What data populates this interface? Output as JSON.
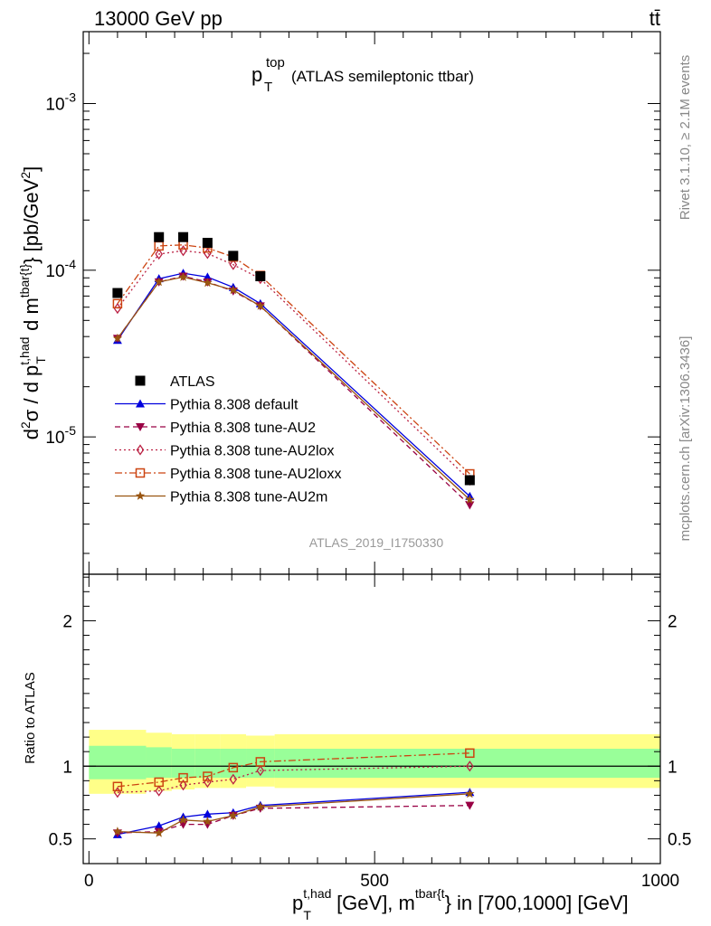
{
  "header": {
    "energy_label": "13000 GeV pp",
    "process_label": "tt̄"
  },
  "title": {
    "main": "p",
    "sup": "top",
    "sub": "T",
    "rest": "(ATLAS semileptonic ttbar)"
  },
  "analysis_id": "ATLAS_2019_I1750330",
  "side_labels": {
    "rivet": "Rivet 3.1.10, ≥ 2.1M events",
    "mcplots": "mcplots.cern.ch [arXiv:1306.3436]"
  },
  "main_ylabel": "d²σ / d p_T^{t,had} d m^{tbar{t}} [pb/GeV²]",
  "ratio_ylabel": "Ratio to ATLAS",
  "xlabel": "p_T^{t,had} [GeV], m^{tbar{t}} in [700,1000] [GeV]",
  "legend": [
    {
      "label": "ATLAS"
    },
    {
      "label": "Pythia 8.308 default"
    },
    {
      "label": "Pythia 8.308 tune-AU2"
    },
    {
      "label": "Pythia 8.308 tune-AU2lox"
    },
    {
      "label": "Pythia 8.308 tune-AU2loxx"
    },
    {
      "label": "Pythia 8.308 tune-AU2m"
    }
  ],
  "chart_data": [
    {
      "type": "scatter",
      "panel": "main",
      "y_scale": "log",
      "x_range": [
        -10,
        1000
      ],
      "y_range": [
        1.5e-06,
        0.0027
      ],
      "x_ticks": [
        0,
        500,
        1000
      ],
      "y_tick_labels": [
        "10^{-5}",
        "10^{-4}",
        "10^{-3}"
      ],
      "series": [
        {
          "name": "ATLAS",
          "color": "#000000",
          "marker": "square-filled",
          "line": "none",
          "x": [
            50,
            122.5,
            165,
            207.5,
            252.5,
            300,
            666.5
          ],
          "y": [
            7.3e-05,
            0.000158,
            0.000158,
            0.000146,
            0.000122,
            9.2e-05,
            5.5e-06
          ]
        },
        {
          "name": "Pythia 8.308 default",
          "color": "#0000dd",
          "marker": "triangle-up",
          "line": "solid",
          "x": [
            50,
            122.5,
            165,
            207.5,
            252.5,
            300,
            666.5
          ],
          "y": [
            3.8e-05,
            8.9e-05,
            9.6e-05,
            9.1e-05,
            7.9e-05,
            6.3e-05,
            4.4e-06
          ]
        },
        {
          "name": "Pythia 8.308 tune-AU2",
          "color": "#990044",
          "marker": "triangle-down",
          "line": "dashed",
          "x": [
            50,
            122.5,
            165,
            207.5,
            252.5,
            300,
            666.5
          ],
          "y": [
            3.9e-05,
            8.5e-05,
            9.2e-05,
            8.5e-05,
            7.5e-05,
            6.1e-05,
            3.9e-06
          ]
        },
        {
          "name": "Pythia 8.308 tune-AU2lox",
          "color": "#bb2244",
          "marker": "diamond-open",
          "line": "dotted",
          "x": [
            50,
            122.5,
            165,
            207.5,
            252.5,
            300,
            666.5
          ],
          "y": [
            5.9e-05,
            0.000125,
            0.000131,
            0.000126,
            0.000108,
            8.9e-05,
            5.5e-06
          ]
        },
        {
          "name": "Pythia 8.308 tune-AU2loxx",
          "color": "#cc4411",
          "marker": "square-open",
          "line": "dashdot",
          "x": [
            50,
            122.5,
            165,
            207.5,
            252.5,
            300,
            666.5
          ],
          "y": [
            6.3e-05,
            0.00014,
            0.000142,
            0.000136,
            0.00012,
            9.3e-05,
            6e-06
          ]
        },
        {
          "name": "Pythia 8.308 tune-AU2m",
          "color": "#995511",
          "marker": "star",
          "line": "solid",
          "x": [
            50,
            122.5,
            165,
            207.5,
            252.5,
            300,
            666.5
          ],
          "y": [
            3.9e-05,
            8.5e-05,
            9.1e-05,
            8.4e-05,
            7.6e-05,
            6.1e-05,
            4.2e-06
          ]
        }
      ]
    },
    {
      "type": "scatter",
      "panel": "ratio",
      "x_range": [
        -10,
        1000
      ],
      "y_range": [
        0.33,
        2.32
      ],
      "y_ticks": [
        0.5,
        1,
        2
      ],
      "reference_line": 1,
      "bands": {
        "x_edges": [
          0,
          100,
          145,
          185,
          230,
          275,
          325,
          1000
        ],
        "inner_lo": [
          0.91,
          0.92,
          0.92,
          0.92,
          0.92,
          0.92,
          0.92
        ],
        "inner_hi": [
          1.14,
          1.13,
          1.12,
          1.12,
          1.12,
          1.12,
          1.12
        ],
        "outer_lo": [
          0.81,
          0.83,
          0.84,
          0.85,
          0.85,
          0.86,
          0.85
        ],
        "outer_hi": [
          1.25,
          1.23,
          1.22,
          1.22,
          1.22,
          1.21,
          1.22
        ],
        "inner_color": "#99ff99",
        "outer_color": "#ffff88"
      },
      "series": [
        {
          "name": "Pythia 8.308 default",
          "color": "#0000dd",
          "marker": "triangle-up",
          "line": "solid",
          "x": [
            50,
            122.5,
            165,
            207.5,
            252.5,
            300,
            666.5
          ],
          "y": [
            0.53,
            0.59,
            0.65,
            0.67,
            0.68,
            0.73,
            0.82
          ]
        },
        {
          "name": "Pythia 8.308 tune-AU2",
          "color": "#990044",
          "marker": "triangle-down",
          "line": "dashed",
          "x": [
            50,
            122.5,
            165,
            207.5,
            252.5,
            300,
            666.5
          ],
          "y": [
            0.54,
            0.55,
            0.6,
            0.6,
            0.66,
            0.71,
            0.73
          ]
        },
        {
          "name": "Pythia 8.308 tune-AU2lox",
          "color": "#bb2244",
          "marker": "diamond-open",
          "line": "dotted",
          "x": [
            50,
            122.5,
            165,
            207.5,
            252.5,
            300,
            666.5
          ],
          "y": [
            0.82,
            0.83,
            0.87,
            0.89,
            0.91,
            0.97,
            1.0
          ]
        },
        {
          "name": "Pythia 8.308 tune-AU2loxx",
          "color": "#cc4411",
          "marker": "square-open",
          "line": "dashdot",
          "x": [
            50,
            122.5,
            165,
            207.5,
            252.5,
            300,
            666.5
          ],
          "y": [
            0.86,
            0.89,
            0.92,
            0.93,
            0.99,
            1.03,
            1.09
          ]
        },
        {
          "name": "Pythia 8.308 tune-AU2m",
          "color": "#995511",
          "marker": "star",
          "line": "solid",
          "x": [
            50,
            122.5,
            165,
            207.5,
            252.5,
            300,
            666.5
          ],
          "y": [
            0.55,
            0.54,
            0.63,
            0.62,
            0.66,
            0.72,
            0.81
          ]
        }
      ]
    }
  ]
}
